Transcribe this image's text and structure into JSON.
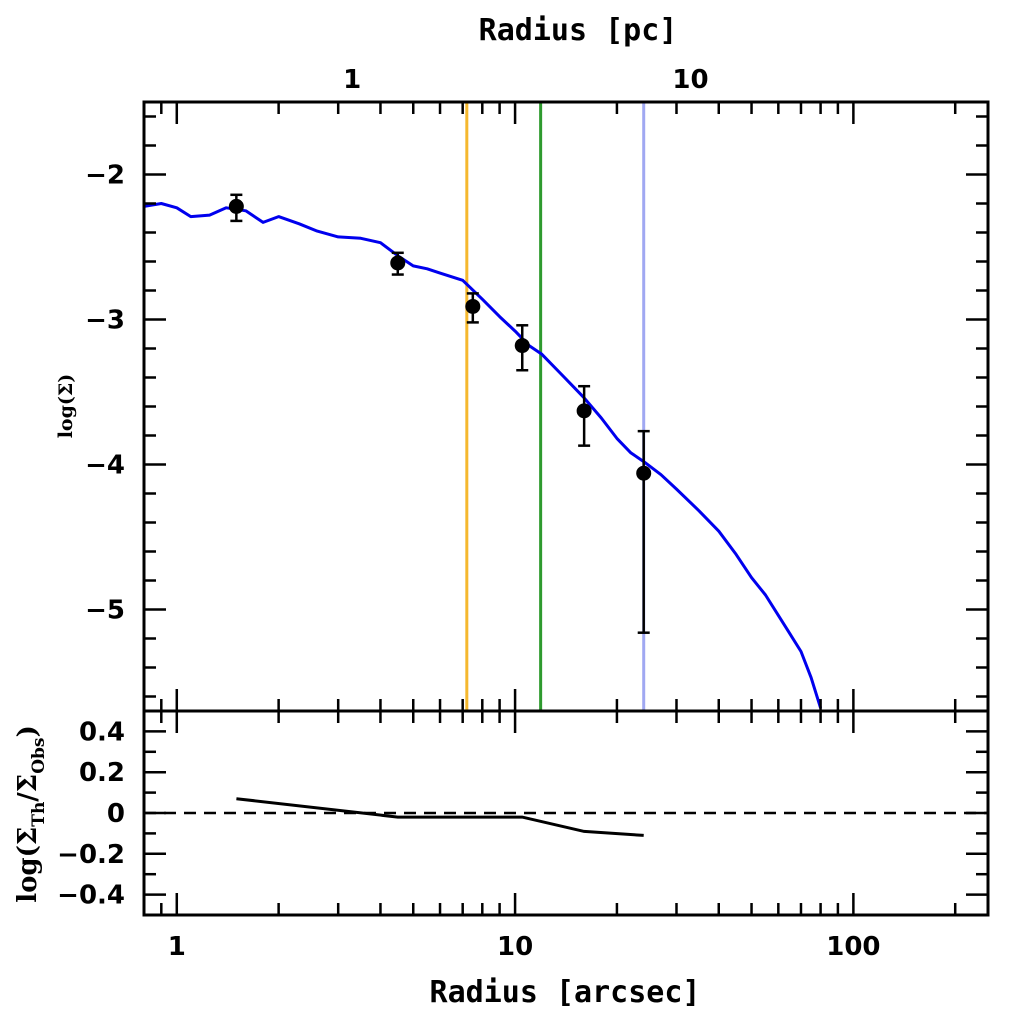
{
  "chart_data": [
    {
      "type": "line",
      "panel": "top",
      "x_scale": "log",
      "xlim": [
        0.8,
        250
      ],
      "ylim": [
        -5.7,
        -1.5
      ],
      "ylabel": "log(Σ)",
      "top_axis": {
        "label": "Radius [pc]",
        "ticks": [
          {
            "label": "1",
            "arcsec": 1.0
          },
          {
            "label": "10",
            "arcsec": 10.0
          }
        ]
      },
      "y_ticks": [
        {
          "value": -2,
          "label": "−2"
        },
        {
          "value": -3,
          "label": "−3"
        },
        {
          "value": -4,
          "label": "−4"
        },
        {
          "value": -5,
          "label": "−5"
        }
      ],
      "model_curve": {
        "color": "#0000ee",
        "x": [
          0.8,
          0.9,
          1.0,
          1.1,
          1.25,
          1.4,
          1.6,
          1.8,
          2.0,
          2.3,
          2.6,
          3.0,
          3.5,
          4.0,
          4.5,
          5.0,
          5.5,
          6.0,
          7.0,
          8.0,
          9.0,
          10.0,
          11.0,
          12.0,
          14.0,
          16.0,
          18.0,
          20.0,
          22.0,
          24.0,
          27.0,
          30.0,
          35.0,
          40.0,
          45.0,
          50.0,
          55.0,
          60.0,
          65.0,
          70.0,
          75.0,
          80.0
        ],
        "y": [
          -2.22,
          -2.2,
          -2.23,
          -2.29,
          -2.28,
          -2.23,
          -2.25,
          -2.33,
          -2.29,
          -2.34,
          -2.39,
          -2.43,
          -2.44,
          -2.47,
          -2.56,
          -2.63,
          -2.65,
          -2.68,
          -2.73,
          -2.86,
          -2.98,
          -3.08,
          -3.18,
          -3.24,
          -3.4,
          -3.54,
          -3.68,
          -3.82,
          -3.92,
          -3.98,
          -4.07,
          -4.17,
          -4.32,
          -4.46,
          -4.62,
          -4.78,
          -4.9,
          -5.04,
          -5.17,
          -5.29,
          -5.47,
          -5.68
        ]
      },
      "observations": {
        "x": [
          1.5,
          4.5,
          7.5,
          10.5,
          16.0,
          24.0
        ],
        "y": [
          -2.22,
          -2.61,
          -2.91,
          -3.18,
          -3.63,
          -4.06
        ],
        "err_low": [
          0.1,
          0.08,
          0.11,
          0.17,
          0.24,
          1.1
        ],
        "err_high": [
          0.08,
          0.07,
          0.09,
          0.14,
          0.17,
          0.29
        ]
      },
      "vertical_lines": [
        {
          "x": 7.2,
          "color": "#f5b82e"
        },
        {
          "x": 11.9,
          "color": "#2e9a2e"
        },
        {
          "x": 24.0,
          "color": "#a0a8f2"
        }
      ]
    },
    {
      "type": "line",
      "panel": "bottom",
      "x_scale": "log",
      "xlim": [
        0.8,
        250
      ],
      "ylim": [
        -0.5,
        0.5
      ],
      "xlabel": "Radius [arcsec]",
      "ylabel": "log(Σ_Th/Σ_Obs)",
      "x_ticks": [
        {
          "value": 1,
          "label": "1"
        },
        {
          "value": 10,
          "label": "10"
        },
        {
          "value": 100,
          "label": "100"
        }
      ],
      "y_ticks": [
        {
          "value": 0.4,
          "label": "0.4"
        },
        {
          "value": 0.2,
          "label": "0.2"
        },
        {
          "value": 0,
          "label": "0"
        },
        {
          "value": -0.2,
          "label": "−0.2"
        },
        {
          "value": -0.4,
          "label": "−0.4"
        }
      ],
      "residual": {
        "x": [
          1.5,
          4.5,
          7.5,
          10.5,
          16.0,
          24.0
        ],
        "y": [
          0.07,
          -0.02,
          -0.02,
          -0.02,
          -0.09,
          -0.11
        ]
      },
      "reference_line": {
        "y": 0,
        "style": "dashed"
      }
    }
  ]
}
